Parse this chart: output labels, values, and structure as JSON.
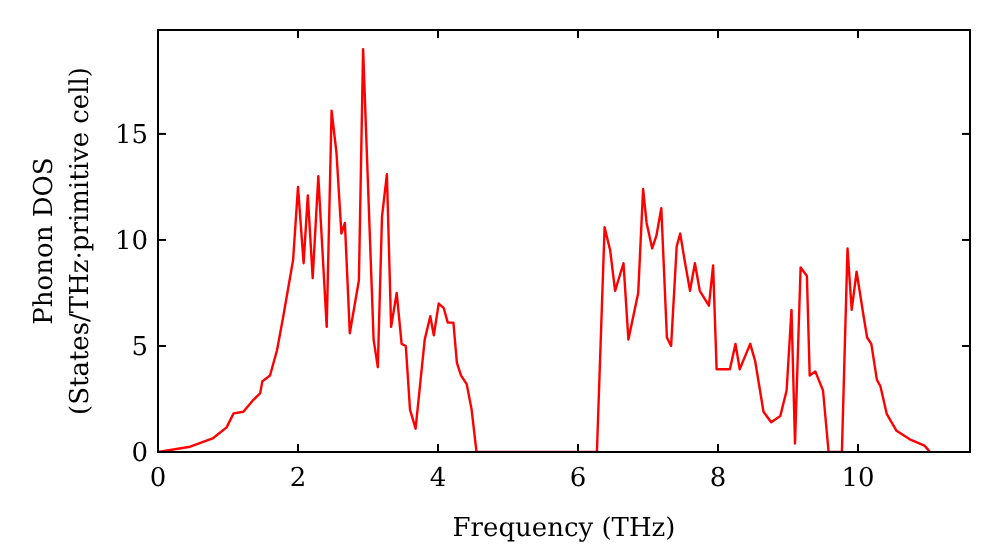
{
  "chart_data": {
    "type": "line",
    "xlabel": "Frequency (THz)",
    "ylabel": "Phonon DOS\n(States/THz·primitive cell)",
    "xlim": [
      0,
      11.6
    ],
    "ylim": [
      0,
      19.9
    ],
    "xticks": [
      0,
      2,
      4,
      6,
      8,
      10
    ],
    "yticks": [
      0,
      5,
      10,
      15
    ],
    "grid": false,
    "marker": "none",
    "line_style": "solid",
    "x": [
      0,
      0.46,
      0.79,
      0.98,
      1.08,
      1.22,
      1.36,
      1.46,
      1.49,
      1.6,
      1.7,
      1.79,
      1.89,
      1.93,
      2.0,
      2.08,
      2.14,
      2.21,
      2.29,
      2.41,
      2.48,
      2.55,
      2.62,
      2.67,
      2.74,
      2.87,
      2.93,
      3.08,
      3.14,
      3.2,
      3.27,
      3.33,
      3.41,
      3.48,
      3.54,
      3.6,
      3.68,
      3.81,
      3.89,
      3.94,
      4.01,
      4.08,
      4.14,
      4.22,
      4.27,
      4.33,
      4.41,
      4.48,
      4.55,
      6.27,
      6.38,
      6.46,
      6.53,
      6.65,
      6.72,
      6.86,
      6.93,
      6.98,
      7.06,
      7.12,
      7.19,
      7.27,
      7.33,
      7.41,
      7.46,
      7.52,
      7.6,
      7.67,
      7.74,
      7.87,
      7.93,
      7.98,
      8.17,
      8.25,
      8.31,
      8.46,
      8.53,
      8.65,
      8.76,
      8.89,
      8.98,
      9.05,
      9.1,
      9.18,
      9.27,
      9.31,
      9.39,
      9.5,
      9.58,
      9.77,
      9.85,
      9.91,
      9.98,
      10.08,
      10.13,
      10.19,
      10.27,
      10.32,
      10.41,
      10.55,
      10.74,
      10.95,
      11.03
    ],
    "series": [
      {
        "color": "#ff0000",
        "values": [
          0,
          0.25,
          0.66,
          1.16,
          1.82,
          1.9,
          2.45,
          2.77,
          3.33,
          3.61,
          4.8,
          6.4,
          8.3,
          9.06,
          12.5,
          8.9,
          12.1,
          8.2,
          13.0,
          5.9,
          16.1,
          14.1,
          10.3,
          10.8,
          5.6,
          8.1,
          19.0,
          5.3,
          4.0,
          11.1,
          13.1,
          5.9,
          7.5,
          5.1,
          5.0,
          2.0,
          1.1,
          5.3,
          6.4,
          5.5,
          7.0,
          6.8,
          6.1,
          6.1,
          4.2,
          3.6,
          3.2,
          2.0,
          0,
          0,
          10.6,
          9.5,
          7.6,
          8.9,
          5.3,
          7.5,
          12.4,
          10.8,
          9.6,
          10.2,
          11.5,
          5.4,
          5.0,
          9.7,
          10.3,
          9.1,
          7.6,
          8.9,
          7.6,
          6.9,
          8.8,
          3.9,
          3.9,
          5.1,
          3.9,
          5.1,
          4.3,
          1.9,
          1.4,
          1.7,
          2.9,
          6.7,
          0.4,
          8.7,
          8.3,
          3.6,
          3.8,
          2.9,
          0,
          0,
          9.6,
          6.7,
          8.5,
          6.4,
          5.4,
          5.1,
          3.4,
          3.1,
          1.8,
          1.0,
          0.6,
          0.3,
          0
        ]
      }
    ]
  }
}
